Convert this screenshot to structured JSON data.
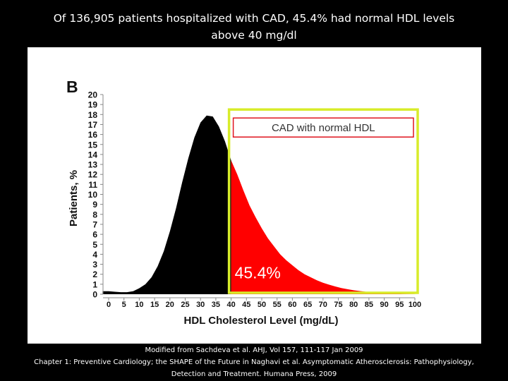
{
  "slide": {
    "title_line1": "Of 136,905 patients hospitalized with CAD, 45.4% had normal HDL levels",
    "title_line2": "above 40 mg/dl",
    "caption_line1": "Modified from Sachdeva et al. AHJ, Vol 157, 111-117 Jan 2009",
    "caption_line2": "Chapter 1: Preventive Cardiology; the SHAPE of the Future in Naghavi et al. Asymptomatic Atherosclerosis: Pathophysiology,",
    "caption_line3": "Detection and Treatment. Humana Press, 2009"
  },
  "chart_data": {
    "type": "area",
    "panel_label": "B",
    "title": "",
    "xlabel": "HDL Cholesterol Level (mg/dL)",
    "ylabel": "Patients, %",
    "xlim": [
      0,
      100
    ],
    "ylim": [
      0,
      20
    ],
    "x_ticks": [
      0,
      5,
      10,
      15,
      20,
      25,
      30,
      35,
      40,
      45,
      50,
      55,
      60,
      65,
      70,
      75,
      80,
      85,
      90,
      95,
      100
    ],
    "y_ticks": [
      0,
      1,
      2,
      3,
      4,
      5,
      6,
      7,
      8,
      9,
      10,
      11,
      12,
      13,
      14,
      15,
      16,
      17,
      18,
      19,
      20
    ],
    "threshold_x": 40,
    "highlight_label": "CAD with normal HDL",
    "highlight_value": "45.4%",
    "colors": {
      "below_threshold": "#000000",
      "above_threshold": "#ff0000",
      "highlight_box": "#d8ec2a",
      "label_box": "#e0141e",
      "label_text": "#333333",
      "value_text": "#ffffff"
    },
    "x": [
      -2,
      0,
      2,
      4,
      6,
      8,
      10,
      12,
      14,
      16,
      18,
      20,
      22,
      24,
      26,
      28,
      30,
      32,
      34,
      36,
      38,
      40,
      42,
      44,
      46,
      48,
      50,
      52,
      54,
      56,
      58,
      60,
      62,
      64,
      66,
      68,
      70,
      72,
      74,
      76,
      78,
      80,
      82,
      84,
      86,
      88,
      90,
      92,
      94,
      96,
      98,
      100
    ],
    "values": [
      0.3,
      0.3,
      0.25,
      0.2,
      0.2,
      0.3,
      0.6,
      1.0,
      1.7,
      2.8,
      4.3,
      6.3,
      8.6,
      11.2,
      13.6,
      15.7,
      17.2,
      17.9,
      17.8,
      16.8,
      15.3,
      13.4,
      12.0,
      10.4,
      8.9,
      7.7,
      6.6,
      5.6,
      4.8,
      4.0,
      3.4,
      2.9,
      2.4,
      2.0,
      1.7,
      1.4,
      1.15,
      0.95,
      0.78,
      0.62,
      0.5,
      0.4,
      0.32,
      0.25,
      0.19,
      0.14,
      0.1,
      0.07,
      0.05,
      0.03,
      0.02,
      0.01
    ]
  }
}
